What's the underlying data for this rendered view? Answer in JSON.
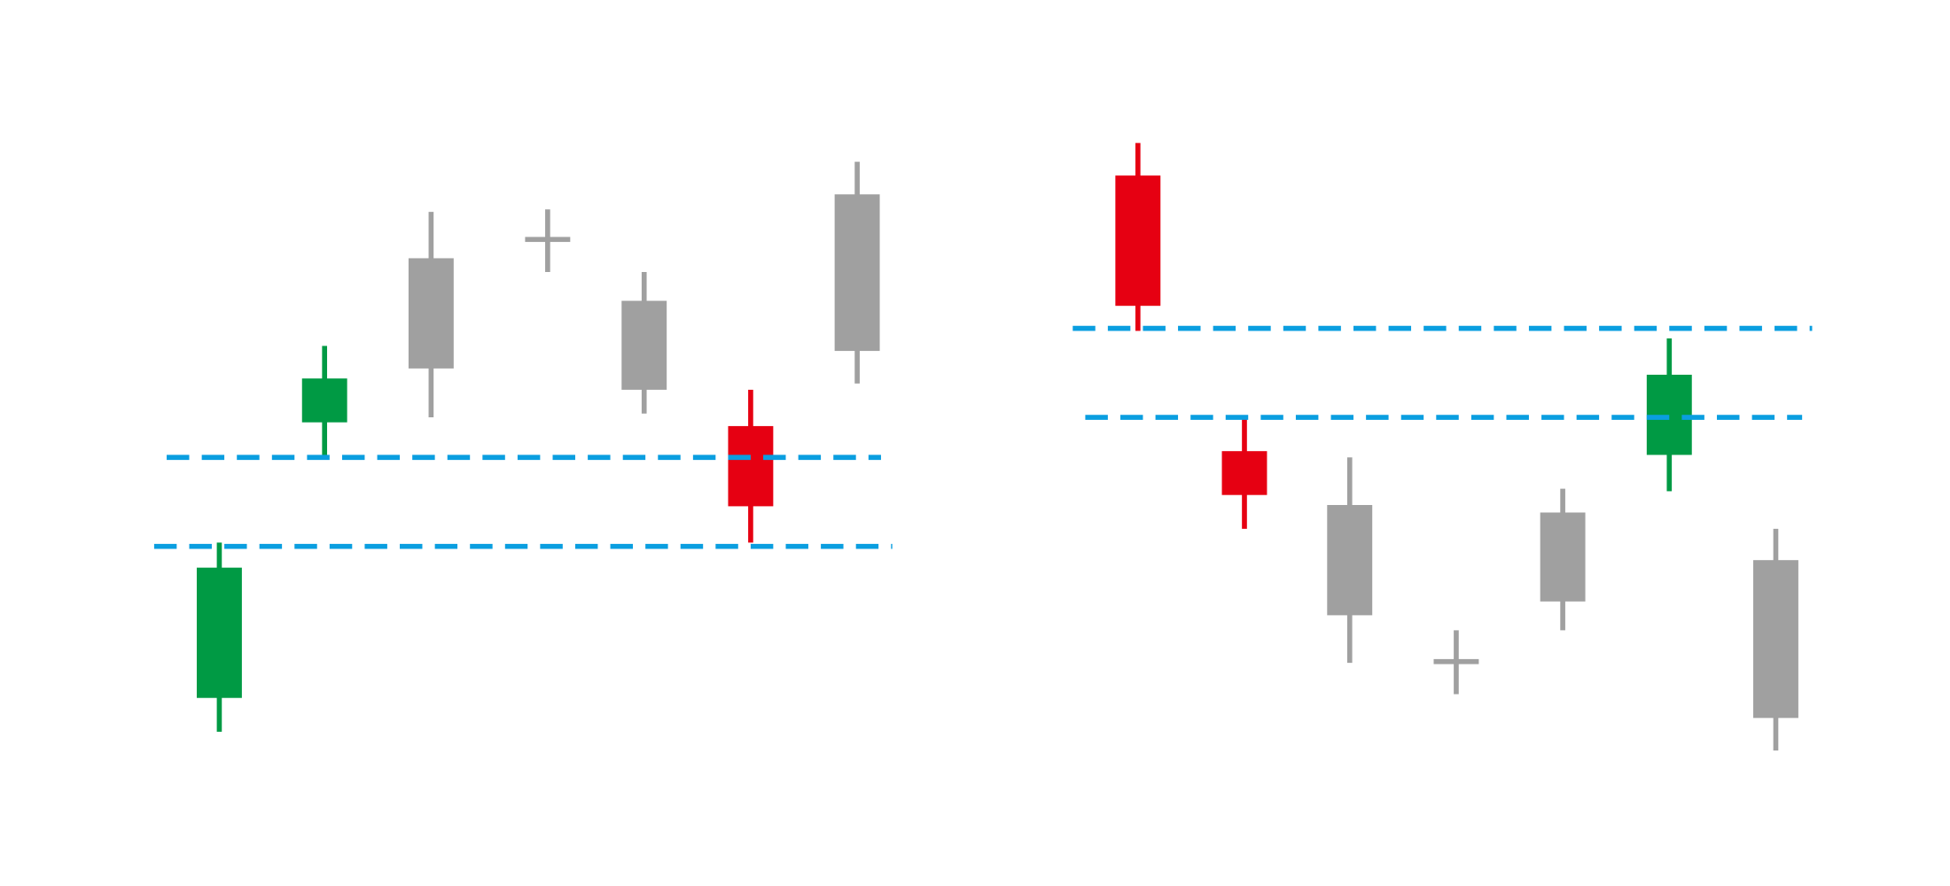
{
  "colors": {
    "rise": "#009a44",
    "fall": "#e60012",
    "neutral": "#a0a0a0",
    "guide": "#0a9ee0"
  }
}
